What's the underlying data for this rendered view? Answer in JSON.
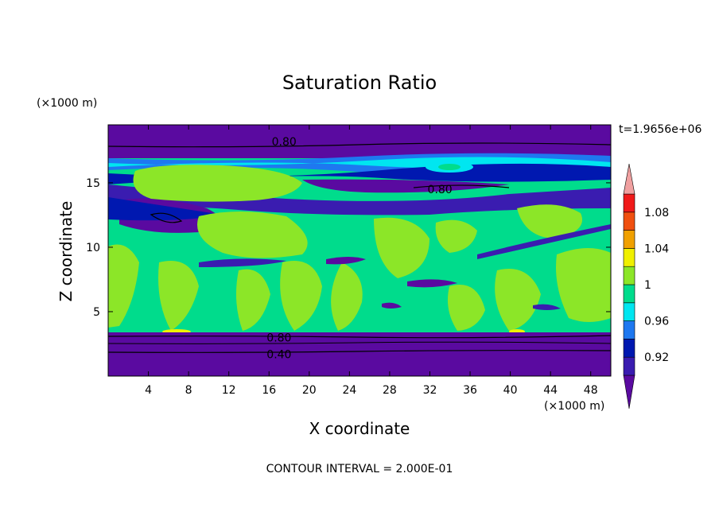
{
  "chart_data": {
    "type": "heatmap",
    "title": "Saturation Ratio",
    "xlabel": "X coordinate",
    "ylabel": "Z coordinate",
    "x_unit": "(×1000 m)",
    "y_unit": "(×1000 m)",
    "time_label": "t=1.9656e+06",
    "footer": "CONTOUR INTERVAL = 2.000E-01",
    "xlim": [
      0,
      50
    ],
    "ylim": [
      0,
      19.5
    ],
    "x_ticks": [
      4,
      8,
      12,
      16,
      20,
      24,
      28,
      32,
      36,
      40,
      44,
      48
    ],
    "y_ticks": [
      5,
      10,
      15
    ],
    "colorbar": {
      "levels": [
        0.92,
        0.94,
        0.96,
        0.98,
        1.0,
        1.02,
        1.04,
        1.06,
        1.08,
        1.1
      ],
      "tick_labels": [
        "0.92",
        "0.96",
        "1",
        "1.04",
        "1.08"
      ],
      "tick_values": [
        0.92,
        0.96,
        1.0,
        1.04,
        1.08
      ],
      "colors": [
        "#5a0aa0",
        "#3a1cb0",
        "#0018b0",
        "#1e78f0",
        "#00e6f0",
        "#00dc8c",
        "#8ce628",
        "#f0f000",
        "#f0a000",
        "#f05010",
        "#f01a1a",
        "#f0a0a0"
      ]
    },
    "contour_labels": [
      {
        "text": "0.80",
        "x": 17.5,
        "y": 18.2
      },
      {
        "text": "0.80",
        "x": 33.0,
        "y": 14.5
      },
      {
        "text": "0.80",
        "x": 17.0,
        "y": 3.0
      },
      {
        "text": "0.40",
        "x": 17.0,
        "y": 1.7
      }
    ],
    "layers": [
      {
        "z": [
          0,
          3.2
        ],
        "value": "below 0.92",
        "color": "#5a0aa0"
      },
      {
        "z": [
          3.2,
          13.5
        ],
        "value": "0.98-1.02 (mixed)",
        "color": "#00dc8c"
      },
      {
        "z": [
          13.5,
          17.0
        ],
        "value": "0.92-0.98",
        "color": "#1e78f0"
      },
      {
        "z": [
          17.0,
          19.5
        ],
        "value": "below 0.92",
        "color": "#5a0aa0"
      }
    ]
  }
}
